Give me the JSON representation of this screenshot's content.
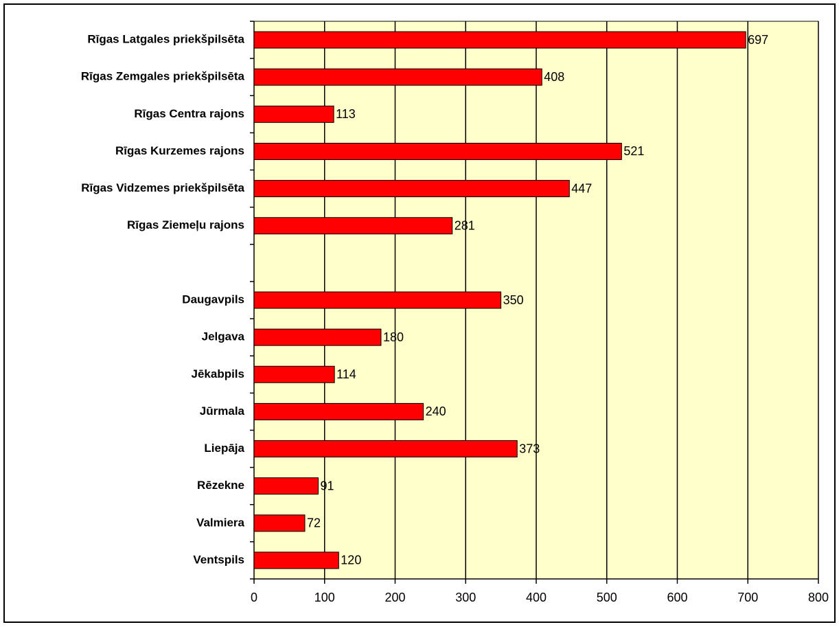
{
  "chart_data": {
    "type": "bar",
    "orientation": "horizontal",
    "categories": [
      "Rīgas Latgales priekšpilsēta",
      "Rīgas Zemgales priekšpilsēta",
      "Rīgas Centra rajons",
      "Rīgas Kurzemes rajons",
      "Rīgas Vidzemes priekšpilsēta",
      "Rīgas Ziemeļu rajons",
      null,
      "Daugavpils",
      "Jelgava",
      "Jēkabpils",
      "Jūrmala",
      "Liepāja",
      "Rēzekne",
      "Valmiera",
      "Ventspils"
    ],
    "values": [
      697,
      408,
      113,
      521,
      447,
      281,
      null,
      350,
      180,
      114,
      240,
      373,
      91,
      72,
      120
    ],
    "color": "#ff0000",
    "background": "#ffffcc",
    "xlim": [
      0,
      800
    ],
    "xticks": [
      0,
      100,
      200,
      300,
      400,
      500,
      600,
      700,
      800
    ],
    "grid": true
  }
}
